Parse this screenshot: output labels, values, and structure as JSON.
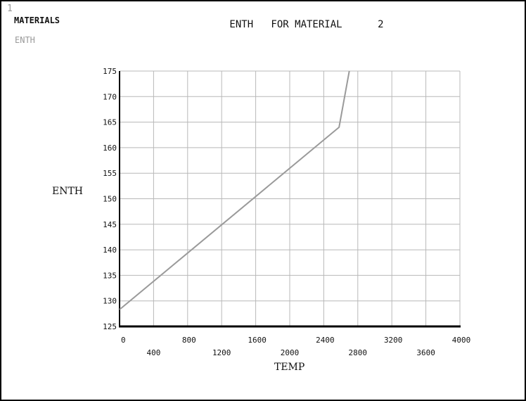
{
  "window_number": "1",
  "legend": {
    "title": "MATERIALS",
    "item": "ENTH",
    "item_color": "#9a9a9a"
  },
  "chart_data": {
    "type": "line",
    "title": "ENTH   FOR MATERIAL      2",
    "xlabel": "TEMP",
    "ylabel": "ENTH",
    "xlim": [
      0,
      4000
    ],
    "ylim": [
      125,
      175
    ],
    "x_ticks_row1": [
      "0",
      "800",
      "1600",
      "2400",
      "3200",
      "4000"
    ],
    "x_ticks_row2": [
      "400",
      "1200",
      "2000",
      "2800",
      "3600"
    ],
    "y_ticks": [
      "125",
      "130",
      "135",
      "140",
      "145",
      "150",
      "155",
      "160",
      "165",
      "170",
      "175"
    ],
    "grid": true,
    "series": [
      {
        "name": "ENTH",
        "color": "#9a9a9a",
        "x": [
          0,
          2580,
          2700
        ],
        "y": [
          128.3,
          164,
          175
        ]
      }
    ]
  }
}
